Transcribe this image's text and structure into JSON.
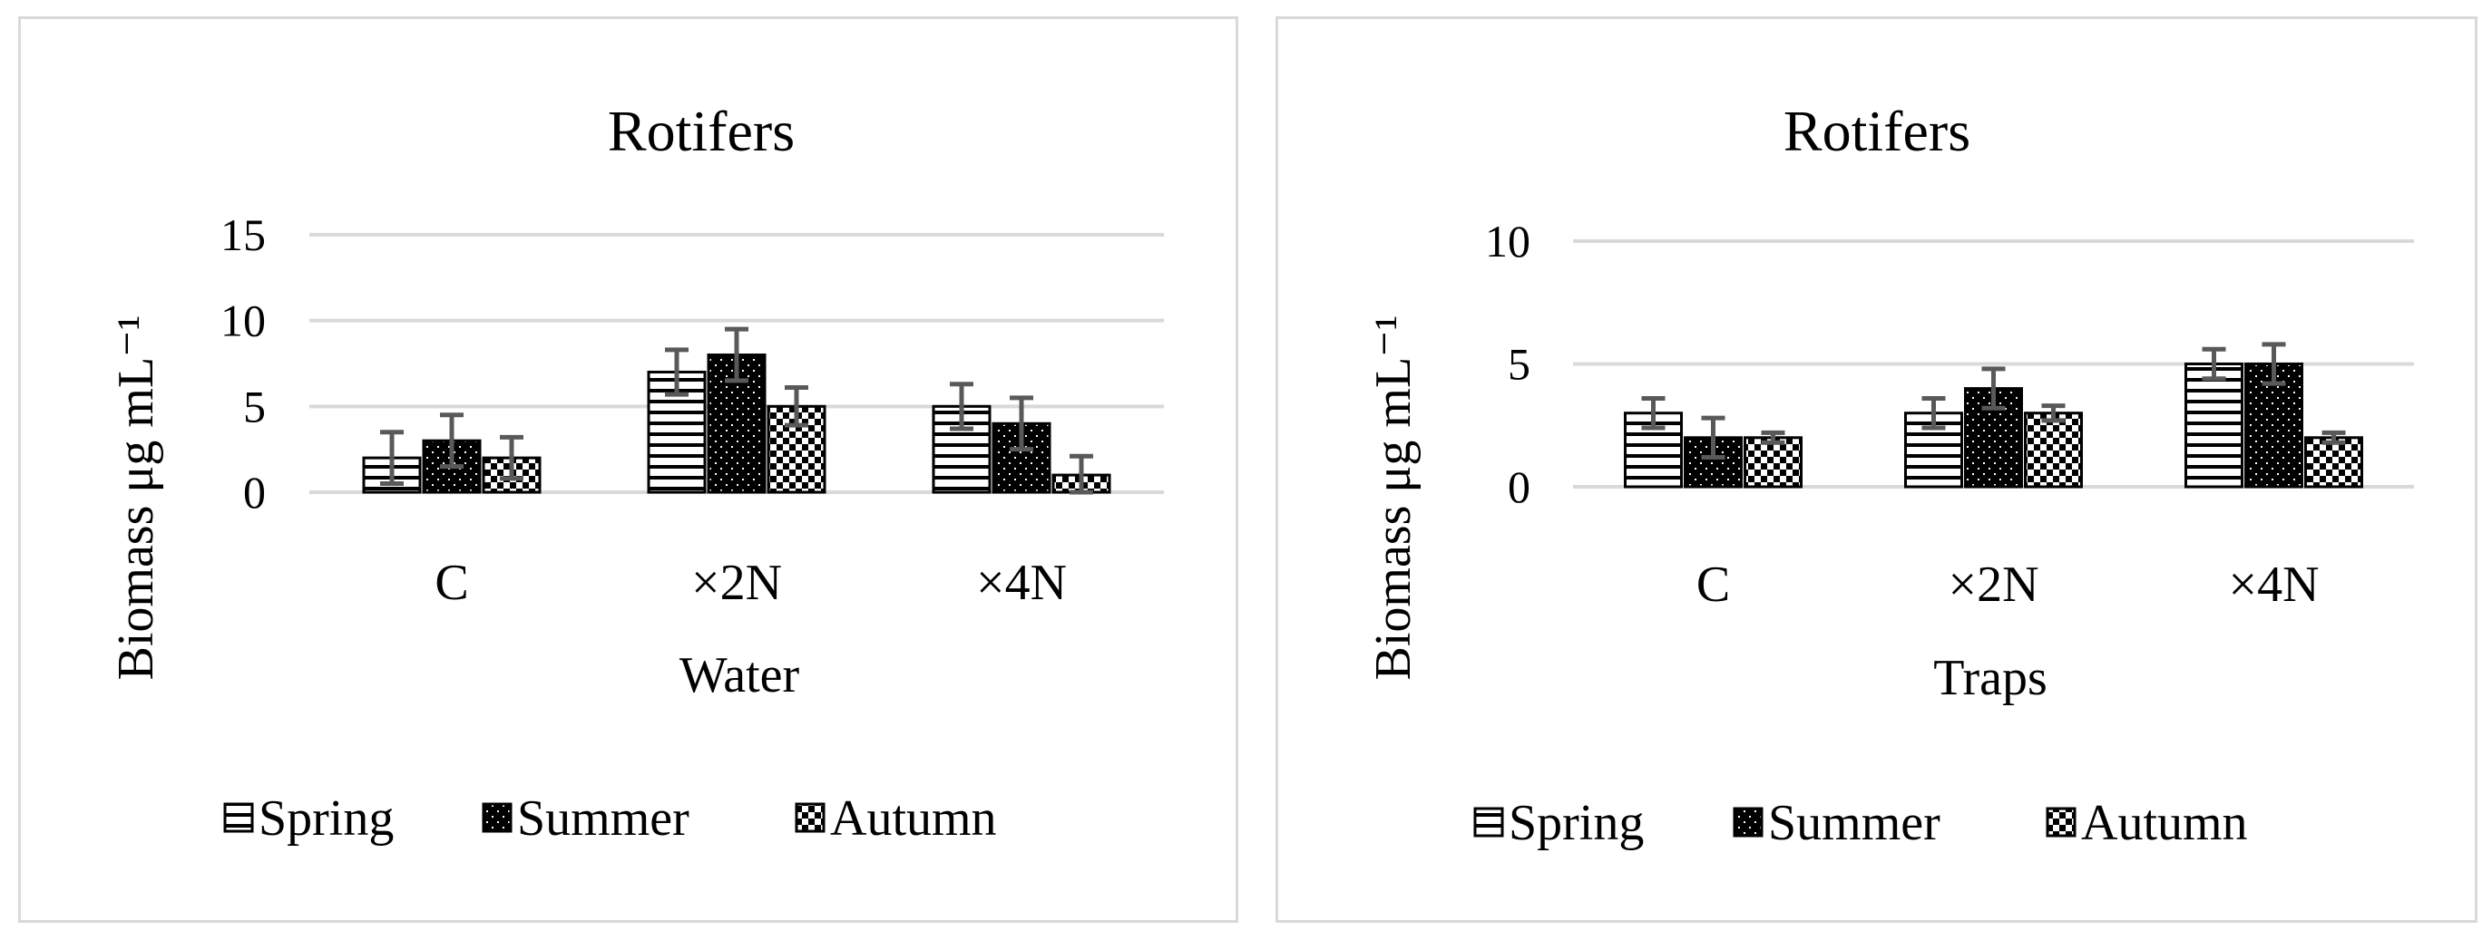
{
  "chart_data": [
    {
      "type": "bar",
      "title": "Rotifers",
      "xlabel": "Water",
      "ylabel": "Biomass μg mL⁻¹",
      "ylim": [
        0,
        15
      ],
      "yticks": [
        "0",
        "5",
        "10",
        "15"
      ],
      "categories": [
        "C",
        "×2N",
        "×4N"
      ],
      "grid": true,
      "legend_position": "bottom",
      "series": [
        {
          "name": "Spring",
          "pattern": "horizontal-lines",
          "values": [
            2,
            7,
            5
          ],
          "errors": [
            1.5,
            1.3,
            1.3
          ]
        },
        {
          "name": "Summer",
          "pattern": "dots-on-black",
          "values": [
            3,
            8,
            4
          ],
          "errors": [
            1.5,
            1.5,
            1.5
          ]
        },
        {
          "name": "Autumn",
          "pattern": "checker",
          "values": [
            2,
            5,
            1
          ],
          "errors": [
            1.2,
            1.1,
            1.1
          ]
        }
      ]
    },
    {
      "type": "bar",
      "title": "Rotifers",
      "xlabel": "Traps",
      "ylabel": "Biomass μg mL⁻¹",
      "ylim": [
        0,
        10
      ],
      "yticks": [
        "0",
        "5",
        "10"
      ],
      "categories": [
        "C",
        "×2N",
        "×4N"
      ],
      "grid": true,
      "legend_position": "bottom",
      "series": [
        {
          "name": "Spring",
          "pattern": "horizontal-lines",
          "values": [
            3,
            3,
            5
          ],
          "errors": [
            0.6,
            0.6,
            0.6
          ]
        },
        {
          "name": "Summer",
          "pattern": "dots-on-black",
          "values": [
            2,
            4,
            5
          ],
          "errors": [
            0.8,
            0.8,
            0.8
          ]
        },
        {
          "name": "Autumn",
          "pattern": "checker",
          "values": [
            2,
            3,
            2
          ],
          "errors": [
            0.2,
            0.3,
            0.2
          ]
        }
      ]
    }
  ],
  "colors": {
    "grid": "#d9d9d9",
    "border": "#d9d9d9",
    "bar_outline": "#000000",
    "error_bar": "#595959"
  }
}
